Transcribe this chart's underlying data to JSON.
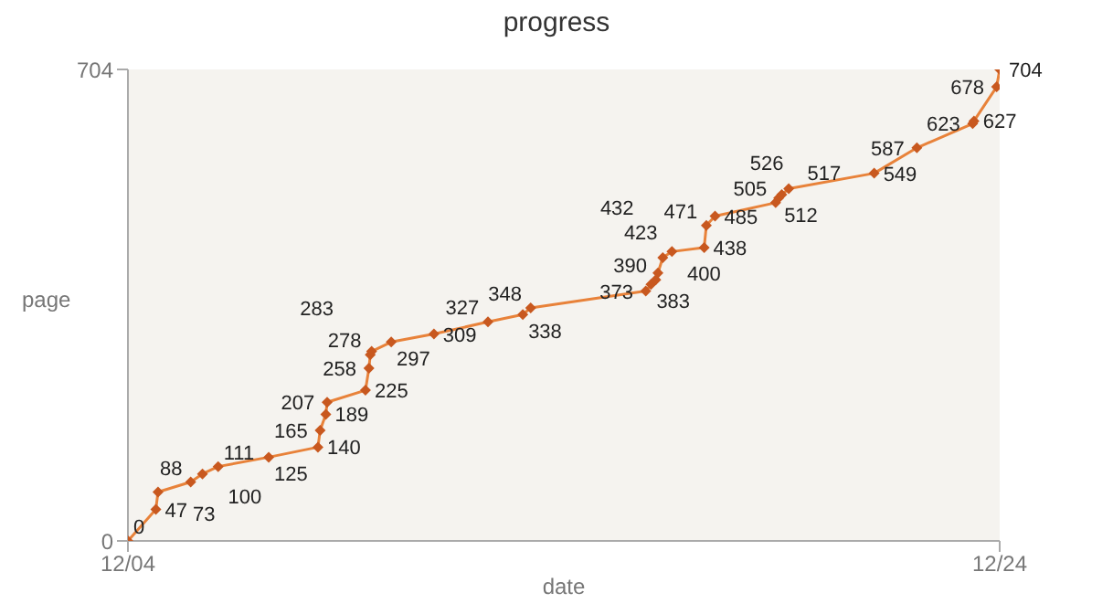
{
  "chart_data": {
    "type": "line",
    "title": "progress",
    "xlabel": "date",
    "ylabel": "page",
    "x": [
      "--12-04T00:00",
      "--12-04T15:22",
      "--12-04T16:34",
      "--12-05T10:34",
      "--12-05T17:02",
      "--12-06T01:41",
      "--12-07T05:31",
      "--12-08T08:38",
      "--12-08T09:50",
      "--12-08T12:58",
      "--12-08T13:41",
      "--12-09T10:48",
      "--12-09T12:43",
      "--12-09T13:26",
      "--12-09T14:10",
      "--12-10T00:58",
      "--12-11T00:29",
      "--12-12T06:14",
      "--12-13T01:26",
      "--12-13T05:46",
      "--12-15T21:07",
      "--12-16T00:00",
      "--12-16T02:38",
      "--12-16T03:50",
      "--12-16T06:29",
      "--12-16T11:31",
      "--12-17T05:17",
      "--12-17T06:29",
      "--12-17T11:17",
      "--12-18T20:38",
      "--12-18T22:19",
      "--12-19T00:00",
      "--12-19T03:50",
      "--12-21T02:53",
      "--12-22T02:24",
      "--12-23T09:07",
      "--12-23T09:50",
      "--12-23T22:19",
      "--12-24T00:00"
    ],
    "series": [
      {
        "color": "#e8823a",
        "values": [
          0,
          47,
          73,
          88,
          100,
          111,
          125,
          140,
          165,
          189,
          207,
          225,
          258,
          278,
          283,
          297,
          309,
          327,
          338,
          348,
          373,
          383,
          390,
          400,
          423,
          432,
          438,
          471,
          485,
          505,
          512,
          517,
          526,
          549,
          587,
          623,
          627,
          678,
          704
        ]
      }
    ],
    "xlim": [
      "--12-04",
      "--12-24"
    ],
    "xticks": [
      {
        "value": "--12-04",
        "label": "12/04"
      },
      {
        "value": "--12-24",
        "label": "12/24"
      }
    ],
    "ylim": [
      0,
      704
    ],
    "yticks": [
      0,
      704
    ],
    "data_labels": true,
    "marker": "diamond",
    "line_style": "solid",
    "grid": false
  }
}
